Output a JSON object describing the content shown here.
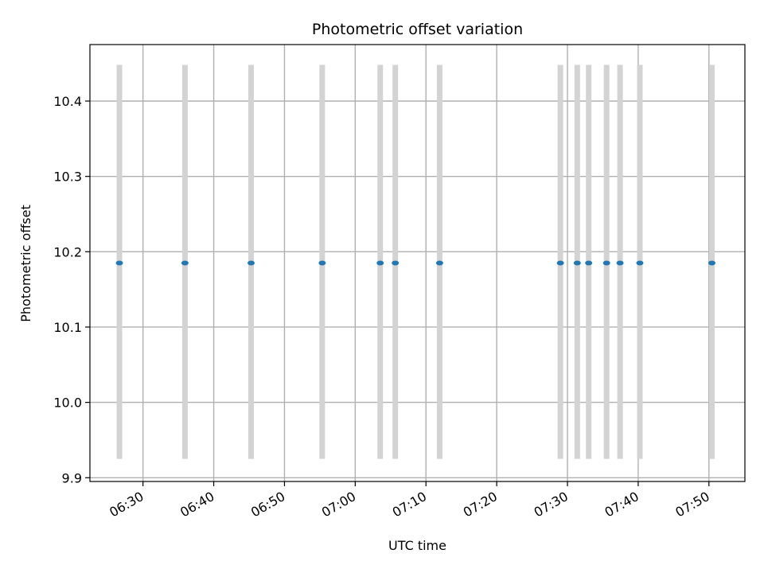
{
  "chart_data": {
    "type": "scatter",
    "title": "Photometric offset variation",
    "xlabel": "UTC time",
    "ylabel": "Photometric offset",
    "grid": true,
    "xlim": [
      "06:22:30",
      "07:55:05"
    ],
    "ylim": [
      9.895,
      10.475
    ],
    "x_ticks": [
      "06:30",
      "06:40",
      "06:50",
      "07:00",
      "07:10",
      "07:20",
      "07:30",
      "07:40",
      "07:50"
    ],
    "y_ticks": [
      9.9,
      10.0,
      10.1,
      10.2,
      10.3,
      10.4
    ],
    "y_tick_labels": [
      "9.9",
      "10.0",
      "10.1",
      "10.2",
      "10.3",
      "10.4"
    ],
    "series": [
      {
        "marker_color": "#1f77b4",
        "errorbar_color": "#d3d3d3",
        "points": [
          {
            "x": "06:26:40",
            "y": 10.185,
            "y_low": 9.925,
            "y_high": 10.448
          },
          {
            "x": "06:35:56",
            "y": 10.185,
            "y_low": 9.925,
            "y_high": 10.448
          },
          {
            "x": "06:45:17",
            "y": 10.185,
            "y_low": 9.925,
            "y_high": 10.448
          },
          {
            "x": "06:55:20",
            "y": 10.185,
            "y_low": 9.925,
            "y_high": 10.448
          },
          {
            "x": "07:03:32",
            "y": 10.185,
            "y_low": 9.925,
            "y_high": 10.448
          },
          {
            "x": "07:05:40",
            "y": 10.185,
            "y_low": 9.925,
            "y_high": 10.448
          },
          {
            "x": "07:11:56",
            "y": 10.185,
            "y_low": 9.925,
            "y_high": 10.448
          },
          {
            "x": "07:29:00",
            "y": 10.185,
            "y_low": 9.925,
            "y_high": 10.448
          },
          {
            "x": "07:31:23",
            "y": 10.185,
            "y_low": 9.925,
            "y_high": 10.448
          },
          {
            "x": "07:33:00",
            "y": 10.185,
            "y_low": 9.925,
            "y_high": 10.448
          },
          {
            "x": "07:35:32",
            "y": 10.185,
            "y_low": 9.925,
            "y_high": 10.448
          },
          {
            "x": "07:37:26",
            "y": 10.185,
            "y_low": 9.925,
            "y_high": 10.448
          },
          {
            "x": "07:40:14",
            "y": 10.185,
            "y_low": 9.925,
            "y_high": 10.448
          },
          {
            "x": "07:50:25",
            "y": 10.185,
            "y_low": 9.925,
            "y_high": 10.448
          }
        ]
      }
    ]
  }
}
